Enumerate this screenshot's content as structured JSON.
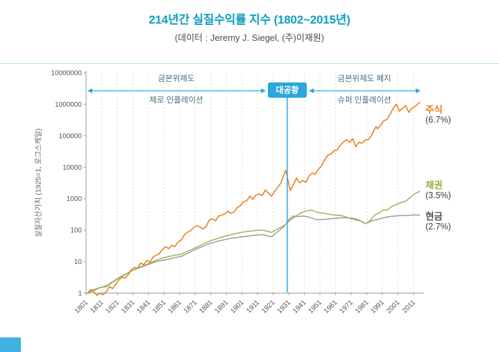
{
  "header": {
    "title": "214년간 실질수익률 지수 (1802~2015년)",
    "subtitle": "(데이터 : Jeremy J. Siegel, (주)이재원)"
  },
  "annotations": {
    "left_top": "금본위제도",
    "left_bottom": "제로 인플레이션",
    "badge": "대공황",
    "right_top": "금본위제도 폐지",
    "right_bottom": "슈퍼 인플레이션"
  },
  "colors": {
    "title": "#0e9dbe",
    "rule": "#b8e2f2",
    "accent": "#29a7de",
    "annotation_text": "#4a6b7c",
    "axis": "#9a9a9a",
    "grid": "#d9d9d9",
    "tick_text": "#555555",
    "footer": "#41b1e1"
  },
  "chart_data": {
    "type": "line",
    "title": "214년간 실질수익률 지수 (1802~2015년)",
    "xlabel": "",
    "ylabel": "실질자산가치 (1925=1, 로그스케일)",
    "y_scale": "log",
    "ylim": [
      1,
      10000000
    ],
    "xlim": [
      1801,
      2016
    ],
    "grid": "vertical-dashed",
    "legend_position": "right",
    "y_ticks": [
      1,
      10,
      100,
      1000,
      10000,
      100000,
      1000000,
      10000000
    ],
    "x_ticks": [
      1801,
      1811,
      1821,
      1831,
      1841,
      1851,
      1861,
      1871,
      1881,
      1891,
      1901,
      1911,
      1921,
      1931,
      1941,
      1951,
      1961,
      1971,
      1981,
      1991,
      2001,
      2011
    ],
    "event_line": {
      "year": 1930,
      "label": "대공황"
    },
    "series": [
      {
        "key": "stocks",
        "name": "주식",
        "return_label": "(6.7%)",
        "color": "#e87f1e",
        "label_color": "#e87f1e",
        "width": 1.6,
        "points": [
          [
            1802,
            1.0
          ],
          [
            1804,
            1.3
          ],
          [
            1806,
            1.1
          ],
          [
            1808,
            0.85
          ],
          [
            1810,
            1.0
          ],
          [
            1812,
            0.9
          ],
          [
            1814,
            1.1
          ],
          [
            1816,
            1.6
          ],
          [
            1818,
            1.4
          ],
          [
            1820,
            1.9
          ],
          [
            1822,
            2.6
          ],
          [
            1824,
            3.2
          ],
          [
            1826,
            3.0
          ],
          [
            1828,
            3.8
          ],
          [
            1830,
            5.5
          ],
          [
            1832,
            6.5
          ],
          [
            1834,
            6.0
          ],
          [
            1836,
            9.0
          ],
          [
            1838,
            8.0
          ],
          [
            1840,
            11
          ],
          [
            1842,
            9.5
          ],
          [
            1844,
            14
          ],
          [
            1846,
            16
          ],
          [
            1848,
            18
          ],
          [
            1850,
            24
          ],
          [
            1852,
            30
          ],
          [
            1854,
            26
          ],
          [
            1856,
            33
          ],
          [
            1858,
            30
          ],
          [
            1860,
            42
          ],
          [
            1862,
            48
          ],
          [
            1864,
            70
          ],
          [
            1866,
            85
          ],
          [
            1868,
            95
          ],
          [
            1870,
            120
          ],
          [
            1872,
            140
          ],
          [
            1874,
            125
          ],
          [
            1876,
            110
          ],
          [
            1878,
            130
          ],
          [
            1880,
            210
          ],
          [
            1882,
            230
          ],
          [
            1884,
            200
          ],
          [
            1886,
            280
          ],
          [
            1888,
            300
          ],
          [
            1890,
            330
          ],
          [
            1892,
            400
          ],
          [
            1894,
            340
          ],
          [
            1896,
            380
          ],
          [
            1898,
            520
          ],
          [
            1900,
            600
          ],
          [
            1902,
            800
          ],
          [
            1904,
            850
          ],
          [
            1906,
            1200
          ],
          [
            1908,
            950
          ],
          [
            1910,
            1300
          ],
          [
            1912,
            1400
          ],
          [
            1914,
            1250
          ],
          [
            1916,
            1900
          ],
          [
            1918,
            1500
          ],
          [
            1920,
            1200
          ],
          [
            1922,
            1700
          ],
          [
            1924,
            2300
          ],
          [
            1926,
            3200
          ],
          [
            1928,
            6000
          ],
          [
            1929,
            8000
          ],
          [
            1930,
            5000
          ],
          [
            1932,
            1800
          ],
          [
            1934,
            2800
          ],
          [
            1936,
            4500
          ],
          [
            1938,
            3200
          ],
          [
            1940,
            3800
          ],
          [
            1942,
            3300
          ],
          [
            1944,
            5200
          ],
          [
            1946,
            6500
          ],
          [
            1948,
            6000
          ],
          [
            1950,
            8500
          ],
          [
            1952,
            11000
          ],
          [
            1954,
            17000
          ],
          [
            1956,
            24000
          ],
          [
            1958,
            26000
          ],
          [
            1960,
            33000
          ],
          [
            1962,
            35000
          ],
          [
            1964,
            50000
          ],
          [
            1966,
            62000
          ],
          [
            1968,
            75000
          ],
          [
            1970,
            62000
          ],
          [
            1972,
            80000
          ],
          [
            1974,
            45000
          ],
          [
            1976,
            62000
          ],
          [
            1978,
            58000
          ],
          [
            1980,
            72000
          ],
          [
            1982,
            75000
          ],
          [
            1984,
            100000
          ],
          [
            1986,
            160000
          ],
          [
            1987,
            195000
          ],
          [
            1988,
            165000
          ],
          [
            1990,
            220000
          ],
          [
            1992,
            300000
          ],
          [
            1994,
            330000
          ],
          [
            1996,
            480000
          ],
          [
            1998,
            750000
          ],
          [
            2000,
            1000000
          ],
          [
            2002,
            600000
          ],
          [
            2004,
            750000
          ],
          [
            2006,
            900000
          ],
          [
            2008,
            550000
          ],
          [
            2010,
            750000
          ],
          [
            2012,
            850000
          ],
          [
            2014,
            1050000
          ],
          [
            2015,
            1150000
          ]
        ]
      },
      {
        "key": "bonds",
        "name": "채권",
        "return_label": "(3.5%)",
        "color": "#9ab353",
        "label_color": "#8fae3e",
        "width": 1.5,
        "points": [
          [
            1802,
            1.0
          ],
          [
            1806,
            1.2
          ],
          [
            1810,
            1.5
          ],
          [
            1814,
            1.6
          ],
          [
            1818,
            2.2
          ],
          [
            1822,
            3.0
          ],
          [
            1826,
            3.8
          ],
          [
            1830,
            5.0
          ],
          [
            1834,
            6.2
          ],
          [
            1838,
            7.5
          ],
          [
            1842,
            9.0
          ],
          [
            1846,
            11
          ],
          [
            1850,
            13
          ],
          [
            1854,
            14.5
          ],
          [
            1858,
            16
          ],
          [
            1862,
            17
          ],
          [
            1866,
            21
          ],
          [
            1870,
            26
          ],
          [
            1874,
            32
          ],
          [
            1878,
            40
          ],
          [
            1882,
            48
          ],
          [
            1886,
            56
          ],
          [
            1890,
            64
          ],
          [
            1894,
            72
          ],
          [
            1898,
            80
          ],
          [
            1902,
            88
          ],
          [
            1906,
            92
          ],
          [
            1910,
            98
          ],
          [
            1914,
            100
          ],
          [
            1918,
            90
          ],
          [
            1920,
            85
          ],
          [
            1924,
            110
          ],
          [
            1928,
            140
          ],
          [
            1932,
            210
          ],
          [
            1936,
            290
          ],
          [
            1940,
            380
          ],
          [
            1944,
            420
          ],
          [
            1946,
            430
          ],
          [
            1950,
            360
          ],
          [
            1954,
            340
          ],
          [
            1958,
            310
          ],
          [
            1962,
            300
          ],
          [
            1966,
            280
          ],
          [
            1970,
            240
          ],
          [
            1974,
            210
          ],
          [
            1978,
            190
          ],
          [
            1980,
            160
          ],
          [
            1982,
            180
          ],
          [
            1984,
            220
          ],
          [
            1986,
            300
          ],
          [
            1988,
            330
          ],
          [
            1990,
            380
          ],
          [
            1992,
            450
          ],
          [
            1994,
            430
          ],
          [
            1996,
            520
          ],
          [
            1998,
            600
          ],
          [
            2000,
            650
          ],
          [
            2002,
            720
          ],
          [
            2004,
            780
          ],
          [
            2006,
            820
          ],
          [
            2008,
            1000
          ],
          [
            2010,
            1200
          ],
          [
            2012,
            1450
          ],
          [
            2014,
            1600
          ],
          [
            2015,
            1700
          ]
        ]
      },
      {
        "key": "cash",
        "name": "현금",
        "return_label": "(2.7%)",
        "color": "#9b9b9b",
        "label_color": "#555555",
        "width": 1.5,
        "points": [
          [
            1802,
            1.0
          ],
          [
            1806,
            1.3
          ],
          [
            1810,
            1.5
          ],
          [
            1814,
            1.7
          ],
          [
            1818,
            2.3
          ],
          [
            1822,
            3.1
          ],
          [
            1826,
            3.9
          ],
          [
            1830,
            5.0
          ],
          [
            1834,
            6.0
          ],
          [
            1838,
            7.2
          ],
          [
            1842,
            8.5
          ],
          [
            1846,
            10
          ],
          [
            1850,
            11
          ],
          [
            1854,
            12
          ],
          [
            1858,
            13.5
          ],
          [
            1862,
            14.5
          ],
          [
            1866,
            18
          ],
          [
            1870,
            23
          ],
          [
            1874,
            28
          ],
          [
            1878,
            34
          ],
          [
            1882,
            40
          ],
          [
            1886,
            45
          ],
          [
            1890,
            50
          ],
          [
            1894,
            55
          ],
          [
            1898,
            58
          ],
          [
            1902,
            62
          ],
          [
            1906,
            66
          ],
          [
            1910,
            70
          ],
          [
            1914,
            72
          ],
          [
            1918,
            65
          ],
          [
            1920,
            62
          ],
          [
            1924,
            90
          ],
          [
            1928,
            130
          ],
          [
            1930,
            180
          ],
          [
            1932,
            240
          ],
          [
            1934,
            280
          ],
          [
            1936,
            270
          ],
          [
            1938,
            275
          ],
          [
            1940,
            280
          ],
          [
            1944,
            260
          ],
          [
            1948,
            220
          ],
          [
            1952,
            215
          ],
          [
            1956,
            225
          ],
          [
            1960,
            235
          ],
          [
            1964,
            245
          ],
          [
            1968,
            250
          ],
          [
            1972,
            240
          ],
          [
            1976,
            210
          ],
          [
            1980,
            160
          ],
          [
            1982,
            175
          ],
          [
            1984,
            195
          ],
          [
            1988,
            220
          ],
          [
            1992,
            250
          ],
          [
            1996,
            270
          ],
          [
            2000,
            285
          ],
          [
            2004,
            290
          ],
          [
            2008,
            295
          ],
          [
            2012,
            305
          ],
          [
            2015,
            300
          ]
        ]
      }
    ]
  }
}
